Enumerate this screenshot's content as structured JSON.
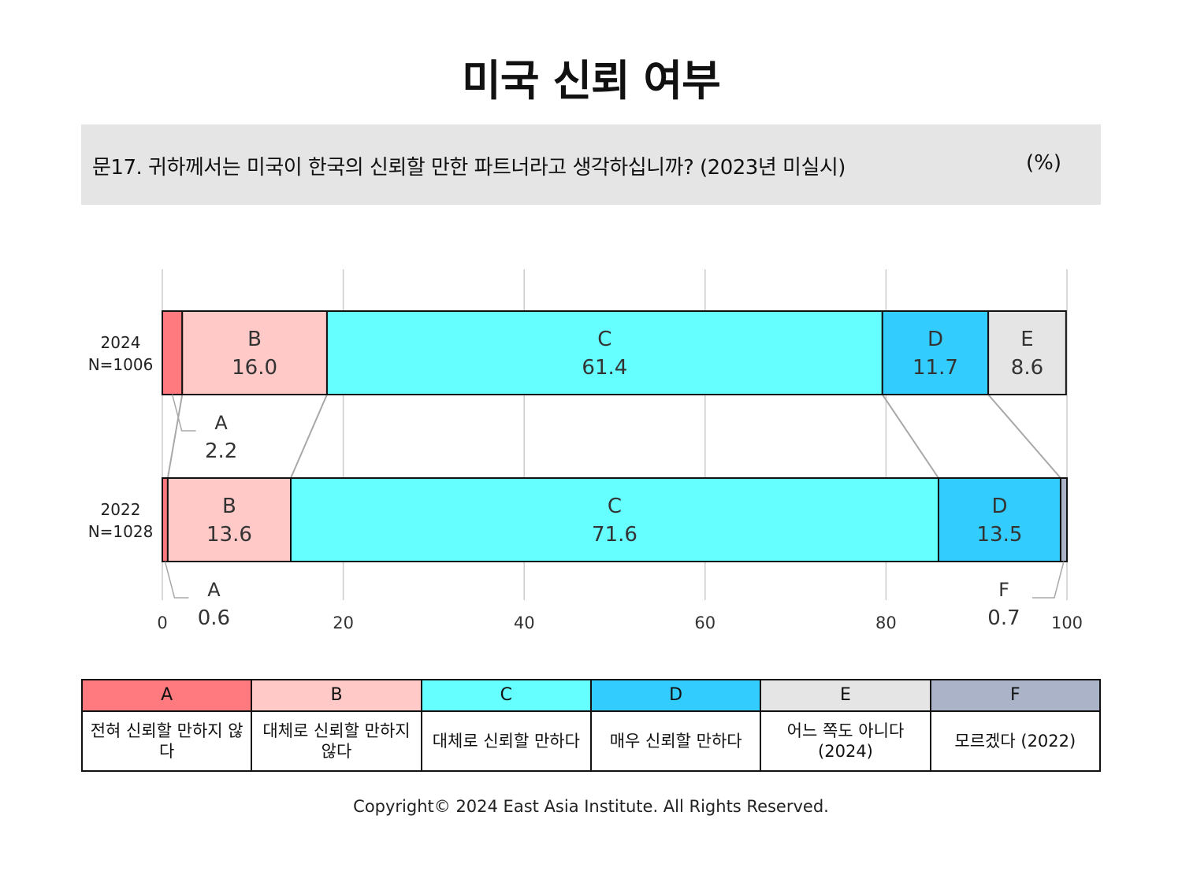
{
  "title": "미국 신뢰 여부",
  "question": "문17. 귀하께서는 미국이 한국의 신뢰할 만한 파트너라고 생각하십니까? (2023년 미실시)",
  "unit": "(%)",
  "legend": [
    {
      "key": "A",
      "label": "전혀 신뢰할 만하지 않다",
      "color": "#ff7a7e"
    },
    {
      "key": "B",
      "label": "대체로 신뢰할 만하지 않다",
      "color": "#ffc9c8"
    },
    {
      "key": "C",
      "label": "대체로 신뢰할 만하다",
      "color": "#66ffff"
    },
    {
      "key": "D",
      "label": "매우 신뢰할 만하다",
      "color": "#33ccff"
    },
    {
      "key": "E",
      "label": "어느 쪽도 아니다 (2024)",
      "color": "#e6e5e6"
    },
    {
      "key": "F",
      "label": "모르겠다 (2022)",
      "color": "#aab3c7"
    }
  ],
  "footer": "Copyright© 2024 East Asia Institute. All Rights Reserved.",
  "chart_data": {
    "type": "bar",
    "stacked": true,
    "orientation": "horizontal",
    "xlim": [
      0,
      100
    ],
    "xticks": [
      0,
      20,
      40,
      60,
      80,
      100
    ],
    "grid": true,
    "categories": [
      {
        "year": "2024",
        "n": "N=1006"
      },
      {
        "year": "2022",
        "n": "N=1028"
      }
    ],
    "series": [
      {
        "name": "A",
        "values": [
          2.2,
          0.6
        ],
        "color": "#ff7a7e"
      },
      {
        "name": "B",
        "values": [
          16.0,
          13.6
        ],
        "color": "#ffc9c8"
      },
      {
        "name": "C",
        "values": [
          61.4,
          71.6
        ],
        "color": "#66ffff"
      },
      {
        "name": "D",
        "values": [
          11.7,
          13.5
        ],
        "color": "#33ccff"
      },
      {
        "name": "E",
        "values": [
          8.6,
          null
        ],
        "color": "#e6e5e6"
      },
      {
        "name": "F",
        "values": [
          null,
          0.7
        ],
        "color": "#aab3c7"
      }
    ]
  }
}
